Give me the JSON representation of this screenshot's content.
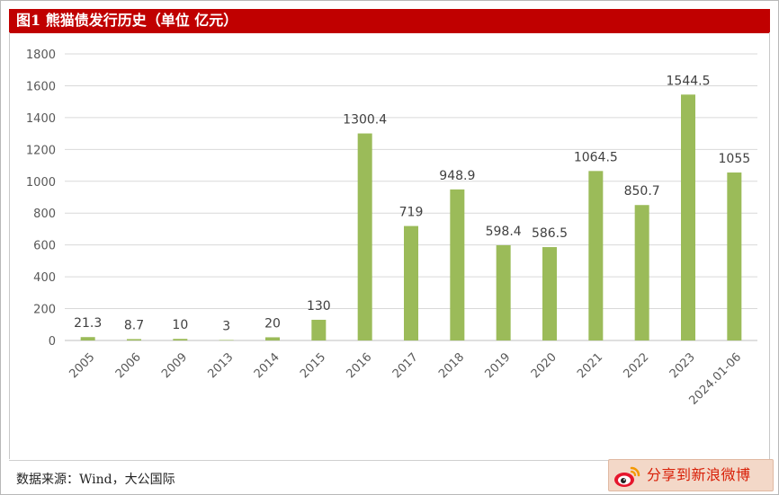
{
  "header": {
    "title": "图1 熊猫债发行历史（单位 亿元）"
  },
  "footer": {
    "source": "数据来源：Wind，大公国际",
    "share_label": "分享到新浪微博",
    "share_icon": "weibo-icon"
  },
  "colors": {
    "bar": "#9bbb59",
    "title_bg": "#c00000",
    "grid": "#d9d9d9"
  },
  "chart_data": {
    "type": "bar",
    "title": "图1 熊猫债发行历史（单位 亿元）",
    "categories": [
      "2005",
      "2006",
      "2009",
      "2013",
      "2014",
      "2015",
      "2016",
      "2017",
      "2018",
      "2019",
      "2020",
      "2021",
      "2022",
      "2023",
      "2024.01-06"
    ],
    "values": [
      21.3,
      8.7,
      10,
      3,
      20,
      130,
      1300.4,
      719,
      948.9,
      598.4,
      586.5,
      1064.5,
      850.7,
      1544.5,
      1055
    ],
    "value_labels": [
      "21.3",
      "8.7",
      "10",
      "3",
      "20",
      "130",
      "1300.4",
      "719",
      "948.9",
      "598.4",
      "586.5",
      "1064.5",
      "850.7",
      "1544.5",
      "1055"
    ],
    "yticks": [
      "0",
      "200",
      "400",
      "600",
      "800",
      "1000",
      "1200",
      "1400",
      "1600",
      "1800"
    ],
    "ylim": [
      0,
      1800
    ],
    "grid": true,
    "legend": "none",
    "xlabel": "",
    "ylabel": ""
  }
}
